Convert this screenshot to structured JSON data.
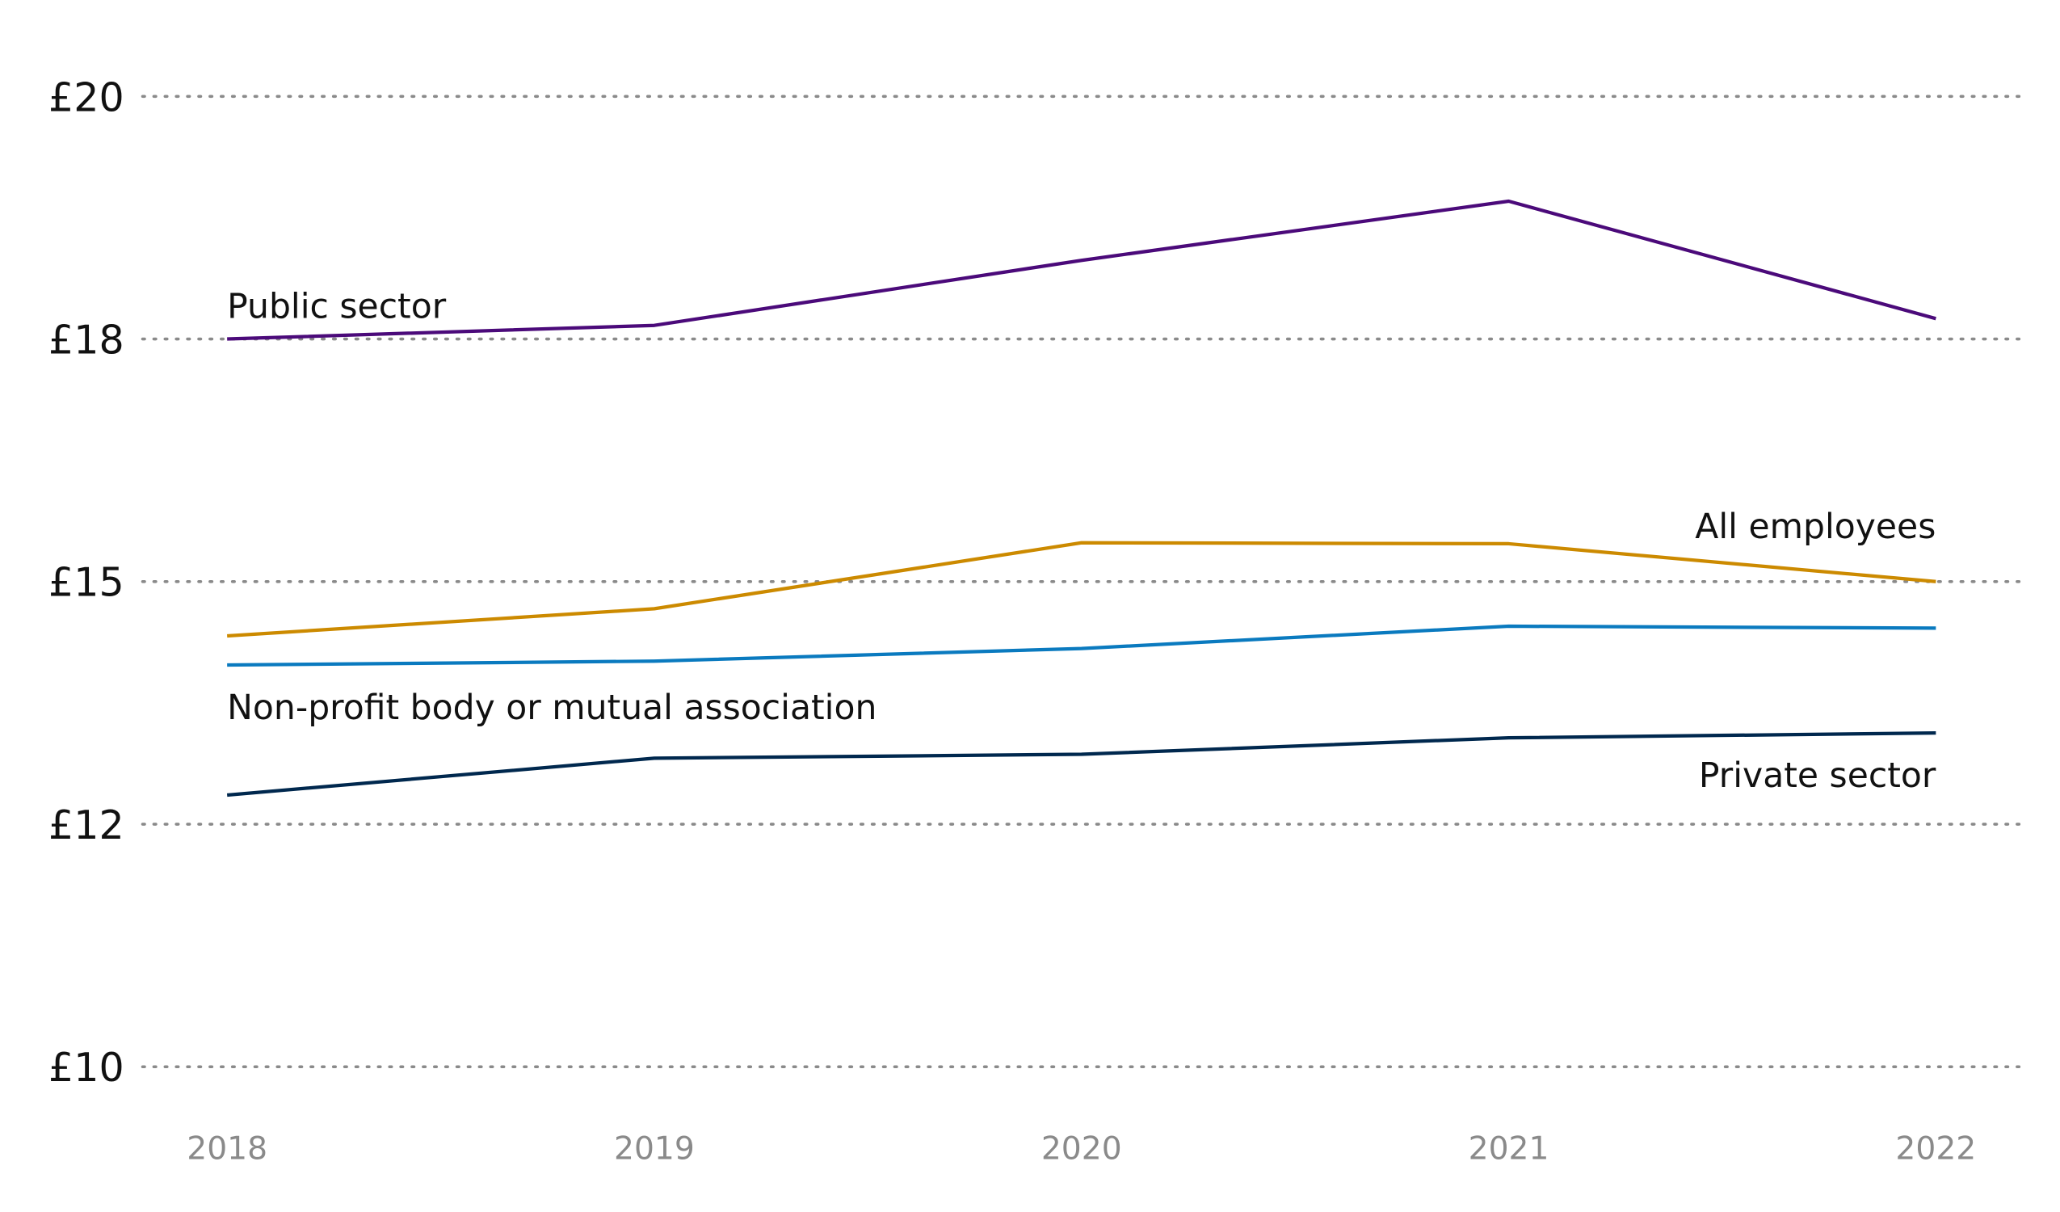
{
  "chart_data": {
    "type": "line",
    "title": "",
    "xlabel": "",
    "ylabel": "",
    "x": [
      "2018",
      "2019",
      "2020",
      "2021",
      "2022"
    ],
    "ylim": [
      10,
      20
    ],
    "y_ticks": [
      {
        "value": 10,
        "label": "£10"
      },
      {
        "value": 12.5,
        "label": "£12"
      },
      {
        "value": 15,
        "label": "£15"
      },
      {
        "value": 17.5,
        "label": "£18"
      },
      {
        "value": 20,
        "label": "£20"
      }
    ],
    "grid": "horizontal dotted",
    "series": [
      {
        "name": "Public sector",
        "color": "#4b0a7a",
        "values": [
          17.5,
          17.64,
          18.31,
          18.92,
          17.71
        ],
        "label_pos": "start-above"
      },
      {
        "name": "All employees",
        "color": "#cc8a00",
        "values": [
          14.44,
          14.72,
          15.4,
          15.39,
          15.0
        ],
        "label_pos": "end-above"
      },
      {
        "name": "Non-profit body or mutual association",
        "color": "#0a7abf",
        "values": [
          14.14,
          14.18,
          14.31,
          14.54,
          14.52
        ],
        "label_pos": "start-below"
      },
      {
        "name": "Private sector",
        "color": "#00284e",
        "values": [
          12.8,
          13.18,
          13.22,
          13.39,
          13.44
        ],
        "label_pos": "end-below"
      }
    ]
  }
}
